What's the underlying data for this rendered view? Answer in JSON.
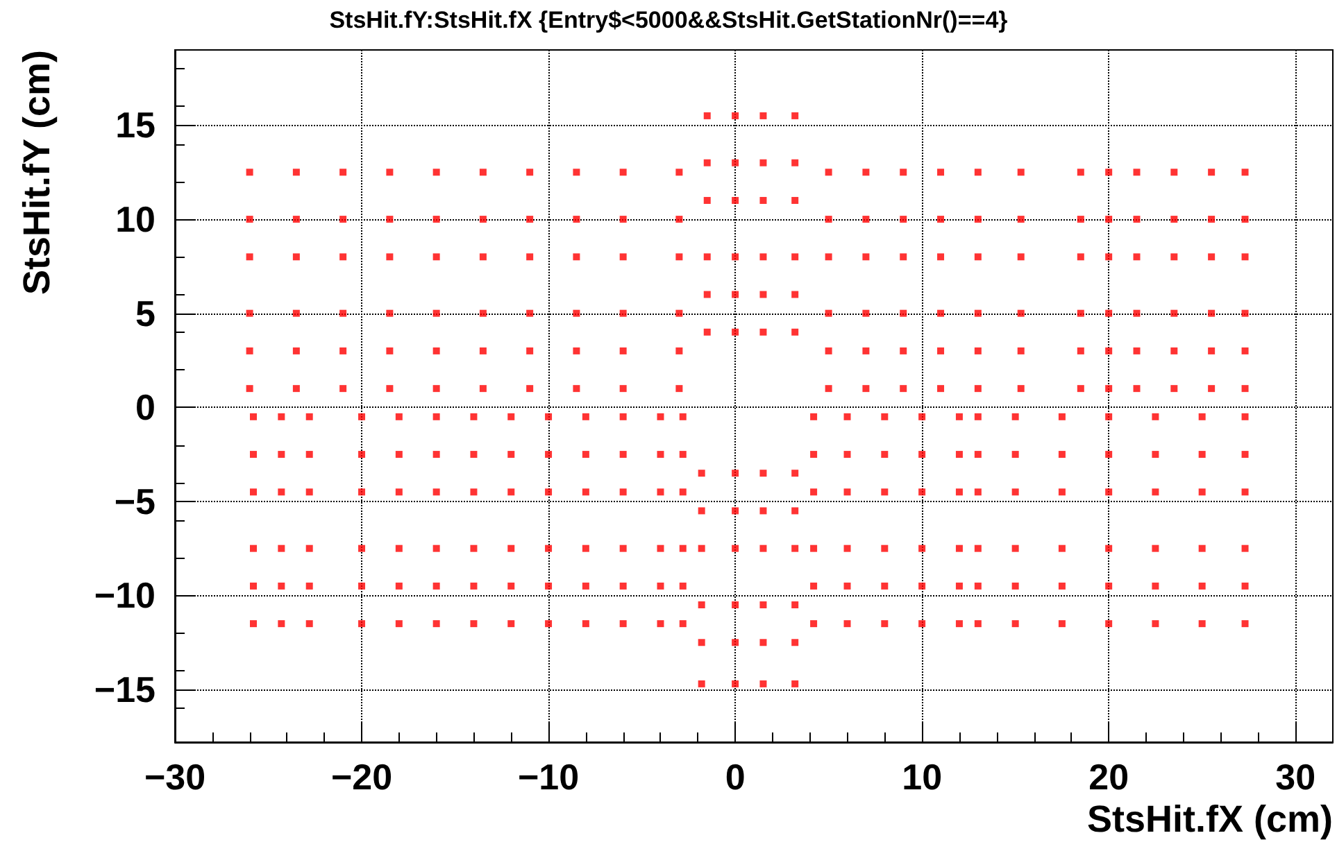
{
  "chart_data": {
    "type": "scatter",
    "title": "StsHit.fY:StsHit.fX {Entry$<5000&&StsHit.GetStationNr()==4}",
    "xlabel": "StsHit.fX (cm)",
    "ylabel": "StsHit.fY (cm)",
    "xlim": [
      -30,
      32
    ],
    "xticks": [
      -30,
      -20,
      -10,
      0,
      10,
      20,
      30
    ],
    "ylim": [
      -17.8,
      19
    ],
    "yticks": [
      -15,
      -10,
      -5,
      0,
      5,
      10,
      15
    ],
    "grid": true,
    "marker": "square",
    "series": [
      {
        "color": "#ff0000",
        "x": [
          -26,
          -23.5,
          -21,
          -18.5,
          -16,
          -13.5,
          -11,
          -8.5,
          -6,
          -3,
          -26,
          -23.5,
          -21,
          -18.5,
          -16,
          -13.5,
          -11,
          -8.5,
          -6,
          -3,
          -26,
          -23.5,
          -21,
          -18.5,
          -16,
          -13.5,
          -11,
          -8.5,
          -6,
          -3,
          -26,
          -23.5,
          -21,
          -18.5,
          -16,
          -13.5,
          -11,
          -8.5,
          -6,
          -3,
          -26,
          -23.5,
          -21,
          -18.5,
          -16,
          -13.5,
          -11,
          -8.5,
          -6,
          -3,
          -26,
          -23.5,
          -21,
          -18.5,
          -16,
          -13.5,
          -11,
          -8.5,
          -6,
          -3
        ],
        "values": [
          1,
          1,
          1,
          1,
          1,
          1,
          1,
          1,
          1,
          1,
          3,
          3,
          3,
          3,
          3,
          3,
          3,
          3,
          3,
          3,
          5,
          5,
          5,
          5,
          5,
          5,
          5,
          5,
          5,
          5,
          8,
          8,
          8,
          8,
          8,
          8,
          8,
          8,
          8,
          8,
          10,
          10,
          10,
          10,
          10,
          10,
          10,
          10,
          10,
          10,
          12.5,
          12.5,
          12.5,
          12.5,
          12.5,
          12.5,
          12.5,
          12.5,
          12.5,
          12.5
        ]
      },
      {
        "color": "#ff0000",
        "x": [
          -1.5,
          0,
          1.5,
          3.2,
          -1.5,
          0,
          1.5,
          3.2,
          -1.5,
          0,
          1.5,
          3.2,
          -1.5,
          0,
          1.5,
          3.2,
          -1.5,
          0,
          1.5,
          3.2,
          -1.5,
          0,
          1.5,
          3.2
        ],
        "values": [
          4,
          4,
          4,
          4,
          6,
          6,
          6,
          6,
          8,
          8,
          8,
          8,
          11,
          11,
          11,
          11,
          13,
          13,
          13,
          13,
          15.5,
          15.5,
          15.5,
          15.5
        ]
      },
      {
        "color": "#ff0000",
        "x": [
          5,
          7,
          9,
          11,
          13,
          15.3,
          5,
          7,
          9,
          11,
          13,
          15.3,
          5,
          7,
          9,
          11,
          13,
          15.3,
          5,
          7,
          9,
          11,
          13,
          15.3,
          5,
          7,
          9,
          11,
          13,
          15.3,
          5,
          7,
          9,
          11,
          13,
          15.3
        ],
        "values": [
          1,
          1,
          1,
          1,
          1,
          1,
          3,
          3,
          3,
          3,
          3,
          3,
          5,
          5,
          5,
          5,
          5,
          5,
          8,
          8,
          8,
          8,
          8,
          8,
          10,
          10,
          10,
          10,
          10,
          10,
          12.5,
          12.5,
          12.5,
          12.5,
          12.5,
          12.5
        ]
      },
      {
        "color": "#ff0000",
        "x": [
          18.5,
          20,
          21.5,
          18.5,
          20,
          21.5,
          18.5,
          20,
          21.5,
          18.5,
          20,
          21.5,
          18.5,
          20,
          21.5,
          18.5,
          20,
          21.5
        ],
        "values": [
          1,
          1,
          1,
          3,
          3,
          3,
          5,
          5,
          5,
          8,
          8,
          8,
          10,
          10,
          10,
          12.5,
          12.5,
          12.5
        ]
      },
      {
        "color": "#ff0000",
        "x": [
          23.5,
          25.5,
          27.3,
          23.5,
          25.5,
          27.3,
          23.5,
          25.5,
          27.3,
          23.5,
          25.5,
          27.3,
          23.5,
          25.5,
          27.3,
          23.5,
          25.5,
          27.3
        ],
        "values": [
          1,
          1,
          1,
          3,
          3,
          3,
          5,
          5,
          5,
          8,
          8,
          8,
          10,
          10,
          10,
          12.5,
          12.5,
          12.5
        ]
      },
      {
        "color": "#ff0000",
        "x": [
          -25.8,
          -24.3,
          -22.8,
          -25.8,
          -24.3,
          -22.8,
          -25.8,
          -24.3,
          -22.8,
          -25.8,
          -24.3,
          -22.8,
          -25.8,
          -24.3,
          -22.8,
          -25.8,
          -24.3,
          -22.8
        ],
        "values": [
          -0.5,
          -0.5,
          -0.5,
          -2.5,
          -2.5,
          -2.5,
          -4.5,
          -4.5,
          -4.5,
          -7.5,
          -7.5,
          -7.5,
          -9.5,
          -9.5,
          -9.5,
          -11.5,
          -11.5,
          -11.5
        ]
      },
      {
        "color": "#ff0000",
        "x": [
          -20,
          -18,
          -16,
          -20,
          -18,
          -16,
          -20,
          -18,
          -16,
          -20,
          -18,
          -16,
          -20,
          -18,
          -16,
          -20,
          -18,
          -16
        ],
        "values": [
          -0.5,
          -0.5,
          -0.5,
          -2.5,
          -2.5,
          -2.5,
          -4.5,
          -4.5,
          -4.5,
          -7.5,
          -7.5,
          -7.5,
          -9.5,
          -9.5,
          -9.5,
          -11.5,
          -11.5,
          -11.5
        ]
      },
      {
        "color": "#ff0000",
        "x": [
          -14,
          -12,
          -10,
          -8,
          -6,
          -4,
          -2.8,
          -14,
          -12,
          -10,
          -8,
          -6,
          -4,
          -2.8,
          -14,
          -12,
          -10,
          -8,
          -6,
          -4,
          -2.8,
          -14,
          -12,
          -10,
          -8,
          -6,
          -4,
          -2.8,
          -14,
          -12,
          -10,
          -8,
          -6,
          -4,
          -2.8,
          -14,
          -12,
          -10,
          -8,
          -6,
          -4,
          -2.8
        ],
        "values": [
          -0.5,
          -0.5,
          -0.5,
          -0.5,
          -0.5,
          -0.5,
          -0.5,
          -2.5,
          -2.5,
          -2.5,
          -2.5,
          -2.5,
          -2.5,
          -2.5,
          -4.5,
          -4.5,
          -4.5,
          -4.5,
          -4.5,
          -4.5,
          -4.5,
          -7.5,
          -7.5,
          -7.5,
          -7.5,
          -7.5,
          -7.5,
          -7.5,
          -9.5,
          -9.5,
          -9.5,
          -9.5,
          -9.5,
          -9.5,
          -9.5,
          -11.5,
          -11.5,
          -11.5,
          -11.5,
          -11.5,
          -11.5,
          -11.5
        ]
      },
      {
        "color": "#ff0000",
        "x": [
          -1.8,
          0,
          1.5,
          3.2,
          -1.8,
          0,
          1.5,
          3.2,
          -1.8,
          0,
          1.5,
          3.2,
          -1.8,
          0,
          1.5,
          3.2,
          -1.8,
          0,
          1.5,
          3.2,
          -1.8,
          0,
          1.5,
          3.2
        ],
        "values": [
          -3.5,
          -3.5,
          -3.5,
          -3.5,
          -5.5,
          -5.5,
          -5.5,
          -5.5,
          -7.5,
          -7.5,
          -7.5,
          -7.5,
          -10.5,
          -10.5,
          -10.5,
          -10.5,
          -12.5,
          -12.5,
          -12.5,
          -12.5,
          -14.7,
          -14.7,
          -14.7,
          -14.7
        ]
      },
      {
        "color": "#ff0000",
        "x": [
          4.2,
          6,
          8,
          10,
          12,
          13,
          4.2,
          6,
          8,
          10,
          12,
          13,
          4.2,
          6,
          8,
          10,
          12,
          13,
          4.2,
          6,
          8,
          10,
          12,
          13,
          4.2,
          6,
          8,
          10,
          12,
          13,
          4.2,
          6,
          8,
          10,
          12,
          13
        ],
        "values": [
          -0.5,
          -0.5,
          -0.5,
          -0.5,
          -0.5,
          -0.5,
          -2.5,
          -2.5,
          -2.5,
          -2.5,
          -2.5,
          -2.5,
          -4.5,
          -4.5,
          -4.5,
          -4.5,
          -4.5,
          -4.5,
          -7.5,
          -7.5,
          -7.5,
          -7.5,
          -7.5,
          -7.5,
          -9.5,
          -9.5,
          -9.5,
          -9.5,
          -9.5,
          -9.5,
          -11.5,
          -11.5,
          -11.5,
          -11.5,
          -11.5,
          -11.5
        ]
      },
      {
        "color": "#ff0000",
        "x": [
          15,
          17.5,
          20,
          22.5,
          25,
          27.3,
          15,
          17.5,
          20,
          22.5,
          25,
          27.3,
          15,
          17.5,
          20,
          22.5,
          25,
          27.3,
          15,
          17.5,
          20,
          22.5,
          25,
          27.3,
          15,
          17.5,
          20,
          22.5,
          25,
          27.3,
          15,
          17.5,
          20,
          22.5,
          25,
          27.3
        ],
        "values": [
          -0.5,
          -0.5,
          -0.5,
          -0.5,
          -0.5,
          -0.5,
          -2.5,
          -2.5,
          -2.5,
          -2.5,
          -2.5,
          -2.5,
          -4.5,
          -4.5,
          -4.5,
          -4.5,
          -4.5,
          -4.5,
          -7.5,
          -7.5,
          -7.5,
          -7.5,
          -7.5,
          -7.5,
          -9.5,
          -9.5,
          -9.5,
          -9.5,
          -9.5,
          -9.5,
          -11.5,
          -11.5,
          -11.5,
          -11.5,
          -11.5,
          -11.5
        ]
      }
    ]
  }
}
